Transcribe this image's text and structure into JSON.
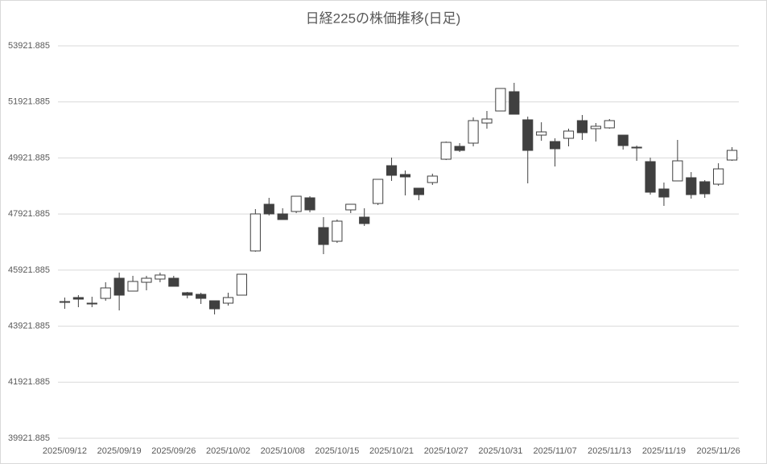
{
  "chart_data": {
    "type": "candlestick",
    "title": "日経225の株価推移(日足)",
    "categories": [
      "2025/09/12",
      null,
      null,
      null,
      "2025/09/19",
      null,
      null,
      null,
      "2025/09/26",
      null,
      null,
      null,
      "2025/10/02",
      null,
      null,
      null,
      "2025/10/08",
      null,
      null,
      null,
      "2025/10/15",
      null,
      null,
      null,
      "2025/10/21",
      null,
      null,
      null,
      "2025/10/27",
      null,
      null,
      null,
      "2025/10/31",
      null,
      null,
      null,
      "2025/11/07",
      null,
      null,
      null,
      "2025/11/13",
      null,
      null,
      null,
      "2025/11/19",
      null,
      null,
      null,
      "2025/11/26",
      null
    ],
    "open": [
      44770,
      44942,
      44742,
      44913,
      45631,
      45172,
      45487,
      45602,
      45631,
      45114,
      45057,
      44827,
      44742,
      45028,
      46606,
      48270,
      47926,
      48012,
      48500,
      47438,
      46950,
      48070,
      47811,
      48299,
      49647,
      49332,
      48844,
      49045,
      49877,
      50336,
      50451,
      51168,
      51598,
      52286,
      51283,
      50737,
      50508,
      50623,
      51254,
      50967,
      50996,
      50737,
      50307,
      49791,
      48815,
      49103,
      49217,
      49074,
      48987,
      49848
    ],
    "high": [
      44942,
      45028,
      44971,
      45487,
      45831,
      45717,
      45717,
      45831,
      45717,
      45143,
      45114,
      44827,
      45114,
      45774,
      48098,
      48500,
      48127,
      48557,
      48557,
      47811,
      47725,
      48270,
      48127,
      49160,
      49934,
      49475,
      48844,
      49361,
      50508,
      50451,
      51369,
      51598,
      52401,
      52602,
      51397,
      51196,
      50623,
      50967,
      51455,
      51168,
      51311,
      50737,
      50364,
      49934,
      49045,
      50565,
      49418,
      49131,
      49733,
      50307
    ],
    "low": [
      44540,
      44598,
      44598,
      44827,
      44483,
      45172,
      45200,
      45487,
      45344,
      44913,
      44713,
      44340,
      44655,
      45028,
      46577,
      47869,
      47725,
      47955,
      47984,
      46491,
      46893,
      47955,
      47496,
      48242,
      49103,
      48586,
      48414,
      48959,
      49848,
      50135,
      50336,
      50967,
      51598,
      51483,
      49016,
      50536,
      49618,
      50336,
      50565,
      50508,
      50967,
      50221,
      49819,
      48614,
      48213,
      49103,
      48471,
      48500,
      48930,
      49819
    ],
    "close": [
      44799,
      44885,
      44713,
      45286,
      45028,
      45516,
      45631,
      45746,
      45344,
      45028,
      44913,
      44540,
      44942,
      45774,
      47926,
      47926,
      47725,
      48557,
      48070,
      46835,
      47668,
      48270,
      47582,
      49160,
      49303,
      49246,
      48614,
      49275,
      50479,
      50192,
      51254,
      51311,
      52401,
      51483,
      50192,
      50852,
      50250,
      50881,
      50824,
      51053,
      51254,
      50364,
      50278,
      48701,
      48528,
      49819,
      48614,
      48643,
      49532,
      50192
    ],
    "up_color": "#ffffff",
    "down_color": "#404040",
    "edge_color": "#404040",
    "ylim": [
      39921.885,
      53921.885
    ],
    "yticks": [
      39921.885,
      41921.885,
      43921.885,
      45921.885,
      47921.885,
      49921.885,
      51921.885,
      53921.885
    ],
    "grid": true
  }
}
